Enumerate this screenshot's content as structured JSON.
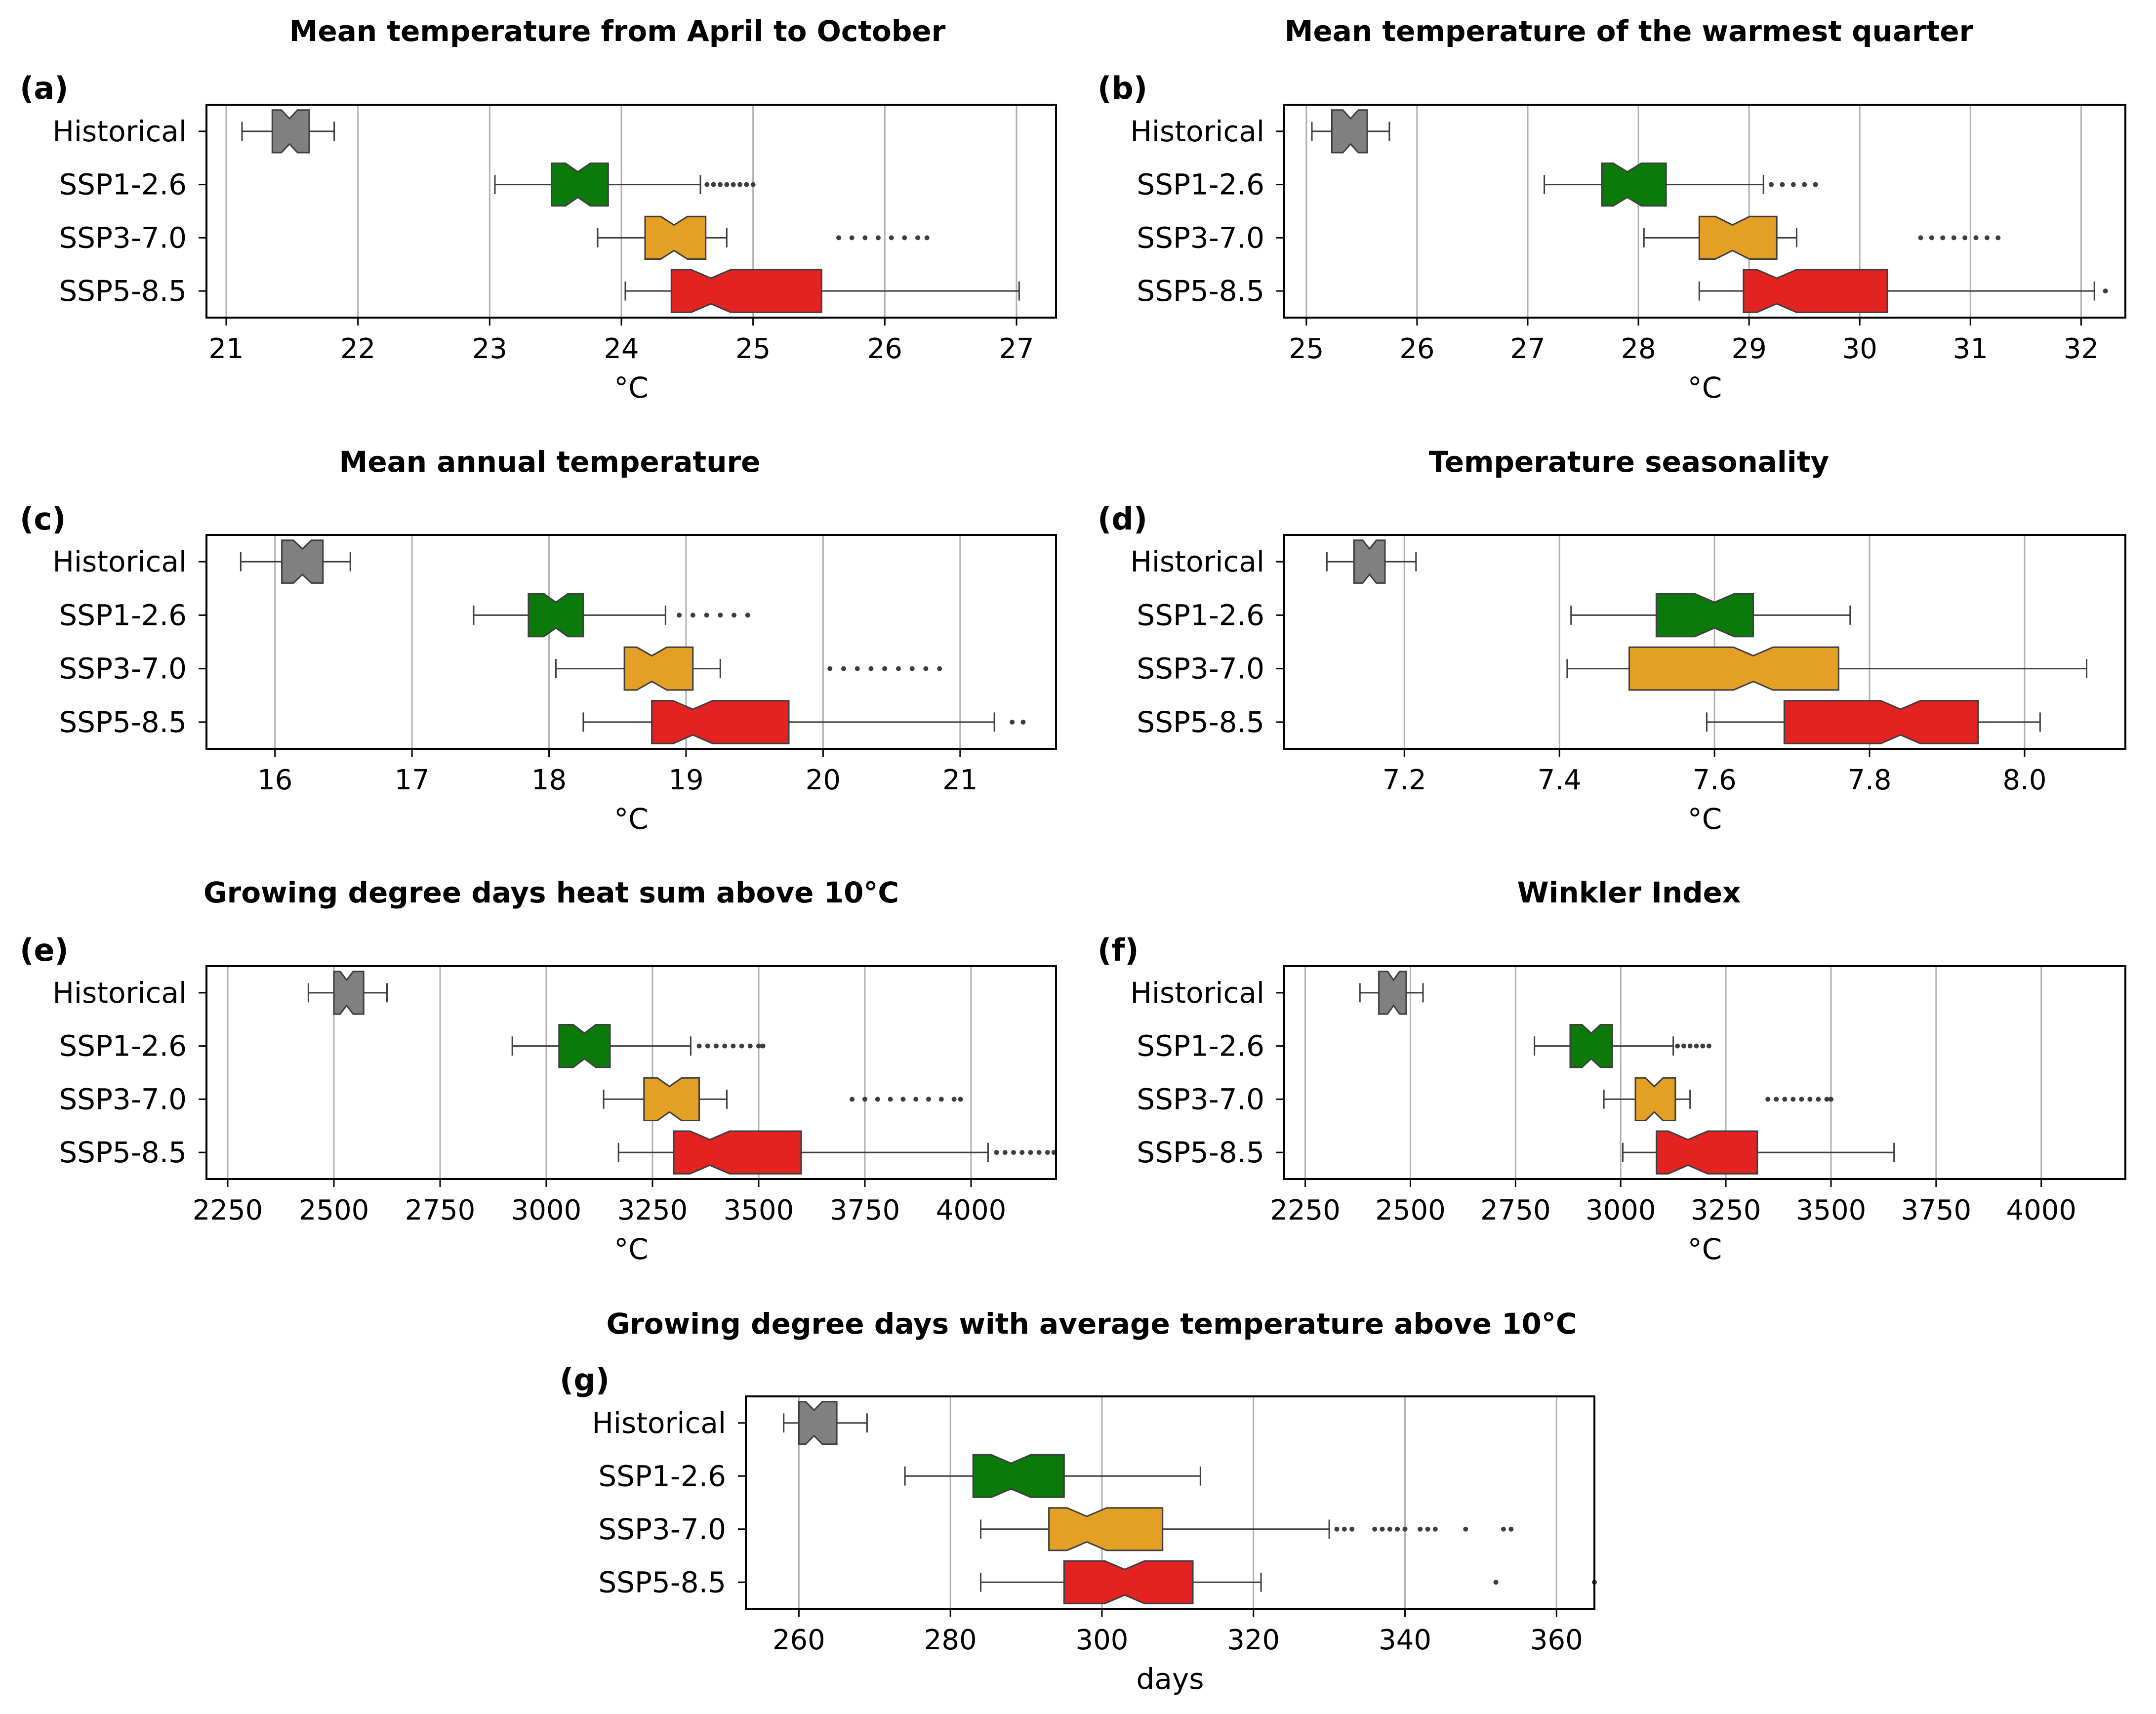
{
  "figure": {
    "categories": [
      "Historical",
      "SSP1-2.6",
      "SSP3-7.0",
      "SSP5-8.5"
    ],
    "colors": {
      "Historical": "#808080",
      "SSP1-2.6": "#0b7a0b",
      "SSP3-7.0": "#e3a024",
      "SSP5-8.5": "#e32222"
    }
  },
  "chart_data": [
    {
      "id": "a",
      "type": "boxplot",
      "label": "(a)",
      "title": "Mean temperature from April to October",
      "xlabel": "°C",
      "xlim": [
        20.85,
        27.3
      ],
      "xticks": [
        21,
        22,
        23,
        24,
        25,
        26,
        27
      ],
      "xtick_labels": [
        "21",
        "22",
        "23",
        "24",
        "25",
        "26",
        "27"
      ],
      "boxes": [
        {
          "name": "Historical",
          "wl": 21.12,
          "q1": 21.35,
          "med": 21.48,
          "q3": 21.63,
          "wh": 21.82,
          "outliers": []
        },
        {
          "name": "SSP1-2.6",
          "wl": 23.04,
          "q1": 23.47,
          "med": 23.67,
          "q3": 23.9,
          "wh": 24.6,
          "outliers": [
            24.65,
            24.7,
            24.75,
            24.8,
            24.85,
            24.9,
            24.95,
            25.0
          ]
        },
        {
          "name": "SSP3-7.0",
          "wl": 23.82,
          "q1": 24.18,
          "med": 24.4,
          "q3": 24.64,
          "wh": 24.8,
          "outliers": [
            25.65,
            25.75,
            25.85,
            25.95,
            26.05,
            26.15,
            26.25,
            26.32
          ]
        },
        {
          "name": "SSP5-8.5",
          "wl": 24.03,
          "q1": 24.38,
          "med": 24.68,
          "q3": 25.52,
          "wh": 27.02,
          "outliers": []
        }
      ]
    },
    {
      "id": "b",
      "type": "boxplot",
      "label": "(b)",
      "title": "Mean temperature of the warmest quarter",
      "xlabel": "°C",
      "xlim": [
        24.8,
        32.4
      ],
      "xticks": [
        25,
        26,
        27,
        28,
        29,
        30,
        31,
        32
      ],
      "xtick_labels": [
        "25",
        "26",
        "27",
        "28",
        "29",
        "30",
        "31",
        "32"
      ],
      "boxes": [
        {
          "name": "Historical",
          "wl": 25.05,
          "q1": 25.23,
          "med": 25.4,
          "q3": 25.55,
          "wh": 25.75,
          "outliers": []
        },
        {
          "name": "SSP1-2.6",
          "wl": 27.15,
          "q1": 27.67,
          "med": 27.9,
          "q3": 28.25,
          "wh": 29.13,
          "outliers": [
            29.2,
            29.3,
            29.4,
            29.5,
            29.6
          ]
        },
        {
          "name": "SSP3-7.0",
          "wl": 28.05,
          "q1": 28.55,
          "med": 28.85,
          "q3": 29.25,
          "wh": 29.43,
          "outliers": [
            30.55,
            30.65,
            30.75,
            30.85,
            30.95,
            31.05,
            31.15,
            31.25
          ]
        },
        {
          "name": "SSP5-8.5",
          "wl": 28.55,
          "q1": 28.95,
          "med": 29.25,
          "q3": 30.25,
          "wh": 32.12,
          "outliers": [
            32.22
          ]
        }
      ]
    },
    {
      "id": "c",
      "type": "boxplot",
      "label": "(c)",
      "title": "Mean annual temperature",
      "xlabel": "°C",
      "xlim": [
        15.5,
        21.7
      ],
      "xticks": [
        16,
        17,
        18,
        19,
        20,
        21
      ],
      "xtick_labels": [
        "16",
        "17",
        "18",
        "19",
        "20",
        "21"
      ],
      "boxes": [
        {
          "name": "Historical",
          "wl": 15.75,
          "q1": 16.05,
          "med": 16.2,
          "q3": 16.35,
          "wh": 16.55,
          "outliers": []
        },
        {
          "name": "SSP1-2.6",
          "wl": 17.45,
          "q1": 17.85,
          "med": 18.05,
          "q3": 18.25,
          "wh": 18.85,
          "outliers": [
            18.95,
            19.05,
            19.15,
            19.25,
            19.35,
            19.45
          ]
        },
        {
          "name": "SSP3-7.0",
          "wl": 18.05,
          "q1": 18.55,
          "med": 18.75,
          "q3": 19.05,
          "wh": 19.25,
          "outliers": [
            20.05,
            20.15,
            20.25,
            20.35,
            20.45,
            20.55,
            20.65,
            20.75,
            20.85
          ]
        },
        {
          "name": "SSP5-8.5",
          "wl": 18.25,
          "q1": 18.75,
          "med": 19.05,
          "q3": 19.75,
          "wh": 21.25,
          "outliers": [
            21.38,
            21.46
          ]
        }
      ]
    },
    {
      "id": "d",
      "type": "boxplot",
      "label": "(d)",
      "title": "Temperature seasonality",
      "xlabel": "°C",
      "xlim": [
        7.045,
        8.13
      ],
      "xticks": [
        7.2,
        7.4,
        7.6,
        7.8,
        8.0
      ],
      "xtick_labels": [
        "7.2",
        "7.4",
        "7.6",
        "7.8",
        "8.0"
      ],
      "boxes": [
        {
          "name": "Historical",
          "wl": 7.1,
          "q1": 7.135,
          "med": 7.155,
          "q3": 7.175,
          "wh": 7.215,
          "outliers": []
        },
        {
          "name": "SSP1-2.6",
          "wl": 7.415,
          "q1": 7.525,
          "med": 7.6,
          "q3": 7.65,
          "wh": 7.775,
          "outliers": []
        },
        {
          "name": "SSP3-7.0",
          "wl": 7.41,
          "q1": 7.49,
          "med": 7.65,
          "q3": 7.76,
          "wh": 8.08,
          "outliers": []
        },
        {
          "name": "SSP5-8.5",
          "wl": 7.59,
          "q1": 7.69,
          "med": 7.84,
          "q3": 7.94,
          "wh": 8.02,
          "outliers": []
        }
      ]
    },
    {
      "id": "e",
      "type": "boxplot",
      "label": "(e)",
      "title": "Growing degree days heat sum above 10°C",
      "xlabel": "°C",
      "xlim": [
        2200,
        4200
      ],
      "xticks": [
        2250,
        2500,
        2750,
        3000,
        3250,
        3500,
        3750,
        4000
      ],
      "xtick_labels": [
        "2250",
        "2500",
        "2750",
        "3000",
        "3250",
        "3500",
        "3750",
        "4000"
      ],
      "boxes": [
        {
          "name": "Historical",
          "wl": 2440,
          "q1": 2500,
          "med": 2530,
          "q3": 2570,
          "wh": 2625,
          "outliers": []
        },
        {
          "name": "SSP1-2.6",
          "wl": 2920,
          "q1": 3030,
          "med": 3090,
          "q3": 3150,
          "wh": 3340,
          "outliers": [
            3360,
            3380,
            3400,
            3420,
            3440,
            3460,
            3480,
            3500,
            3510
          ]
        },
        {
          "name": "SSP3-7.0",
          "wl": 3135,
          "q1": 3230,
          "med": 3290,
          "q3": 3360,
          "wh": 3425,
          "outliers": [
            3720,
            3750,
            3780,
            3810,
            3840,
            3870,
            3900,
            3930,
            3960,
            3975
          ]
        },
        {
          "name": "SSP5-8.5",
          "wl": 3170,
          "q1": 3300,
          "med": 3385,
          "q3": 3600,
          "wh": 4040,
          "outliers": [
            4060,
            4080,
            4100,
            4120,
            4140,
            4160,
            4180,
            4195
          ]
        }
      ]
    },
    {
      "id": "f",
      "type": "boxplot",
      "label": "(f)",
      "title": "Winkler Index",
      "xlabel": "°C",
      "xlim": [
        2200,
        4200
      ],
      "xticks": [
        2250,
        2500,
        2750,
        3000,
        3250,
        3500,
        3750,
        4000
      ],
      "xtick_labels": [
        "2250",
        "2500",
        "2750",
        "3000",
        "3250",
        "3500",
        "3750",
        "4000"
      ],
      "boxes": [
        {
          "name": "Historical",
          "wl": 2380,
          "q1": 2425,
          "med": 2460,
          "q3": 2490,
          "wh": 2530,
          "outliers": []
        },
        {
          "name": "SSP1-2.6",
          "wl": 2795,
          "q1": 2880,
          "med": 2930,
          "q3": 2980,
          "wh": 3125,
          "outliers": [
            3135,
            3150,
            3165,
            3180,
            3195,
            3210
          ]
        },
        {
          "name": "SSP3-7.0",
          "wl": 2960,
          "q1": 3035,
          "med": 3080,
          "q3": 3130,
          "wh": 3165,
          "outliers": [
            3350,
            3370,
            3390,
            3410,
            3430,
            3450,
            3470,
            3490,
            3500
          ]
        },
        {
          "name": "SSP5-8.5",
          "wl": 3005,
          "q1": 3085,
          "med": 3160,
          "q3": 3325,
          "wh": 3650,
          "outliers": []
        }
      ]
    },
    {
      "id": "g",
      "type": "boxplot",
      "label": "(g)",
      "title": "Growing degree days with average temperature above 10°C",
      "xlabel": "days",
      "xlim": [
        253,
        365
      ],
      "xticks": [
        260,
        280,
        300,
        320,
        340,
        360
      ],
      "xtick_labels": [
        "260",
        "280",
        "300",
        "320",
        "340",
        "360"
      ],
      "boxes": [
        {
          "name": "Historical",
          "wl": 258,
          "q1": 260,
          "med": 262,
          "q3": 265,
          "wh": 269,
          "outliers": []
        },
        {
          "name": "SSP1-2.6",
          "wl": 274,
          "q1": 283,
          "med": 288,
          "q3": 295,
          "wh": 313,
          "outliers": []
        },
        {
          "name": "SSP3-7.0",
          "wl": 284,
          "q1": 293,
          "med": 298,
          "q3": 308,
          "wh": 330,
          "outliers": [
            331,
            332,
            333,
            336,
            337,
            338,
            339,
            340,
            342,
            343,
            344,
            348,
            353,
            354
          ]
        },
        {
          "name": "SSP5-8.5",
          "wl": 284,
          "q1": 295,
          "med": 303,
          "q3": 312,
          "wh": 321,
          "outliers": [
            352,
            365
          ]
        }
      ]
    }
  ]
}
